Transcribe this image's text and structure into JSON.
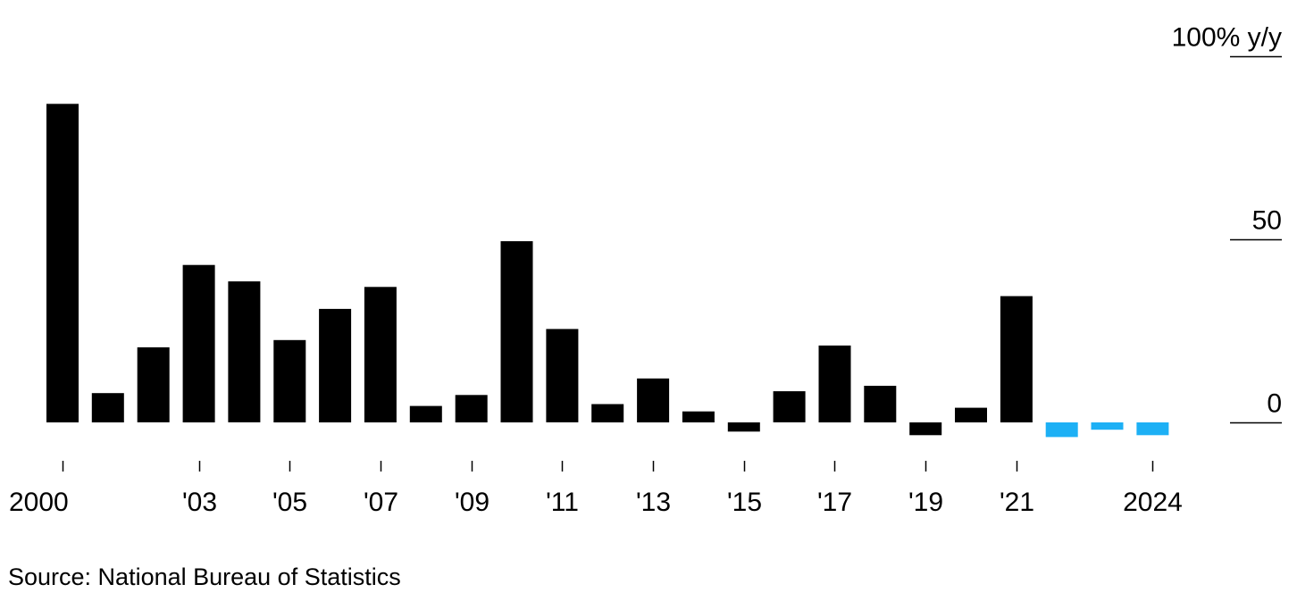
{
  "chart_data": {
    "type": "bar",
    "x": [
      2000,
      2001,
      2002,
      2003,
      2004,
      2005,
      2006,
      2007,
      2008,
      2009,
      2010,
      2011,
      2012,
      2013,
      2014,
      2015,
      2016,
      2017,
      2018,
      2019,
      2020,
      2021,
      2022,
      2023,
      2024
    ],
    "values": [
      87,
      8,
      20.5,
      43,
      38.5,
      22.5,
      31,
      37,
      4.5,
      7.5,
      49.5,
      25.5,
      5,
      12,
      3,
      -2.5,
      8.5,
      21,
      10,
      -3.5,
      4,
      34.5,
      -4,
      -2,
      -3.5
    ],
    "highlight_from_index": 22,
    "colors": {
      "primary": "#000000",
      "highlight": "#1db0f5",
      "grid": "#000000"
    },
    "ylim": [
      -10,
      100
    ],
    "y_ticks": [
      {
        "value": 100,
        "label": "100% y/y"
      },
      {
        "value": 50,
        "label": "50"
      },
      {
        "value": 0,
        "label": "0"
      }
    ],
    "x_ticks": [
      {
        "value": 2000,
        "label": "2000"
      },
      {
        "value": 2003,
        "label": "'03"
      },
      {
        "value": 2005,
        "label": "'05"
      },
      {
        "value": 2007,
        "label": "'07"
      },
      {
        "value": 2009,
        "label": "'09"
      },
      {
        "value": 2011,
        "label": "'11"
      },
      {
        "value": 2013,
        "label": "'13"
      },
      {
        "value": 2015,
        "label": "'15"
      },
      {
        "value": 2017,
        "label": "'17"
      },
      {
        "value": 2019,
        "label": "'19"
      },
      {
        "value": 2021,
        "label": "'21"
      },
      {
        "value": 2024,
        "label": "2024"
      }
    ],
    "grid": true,
    "y_axis_position": "right"
  },
  "source": "Source: National Bureau of Statistics"
}
